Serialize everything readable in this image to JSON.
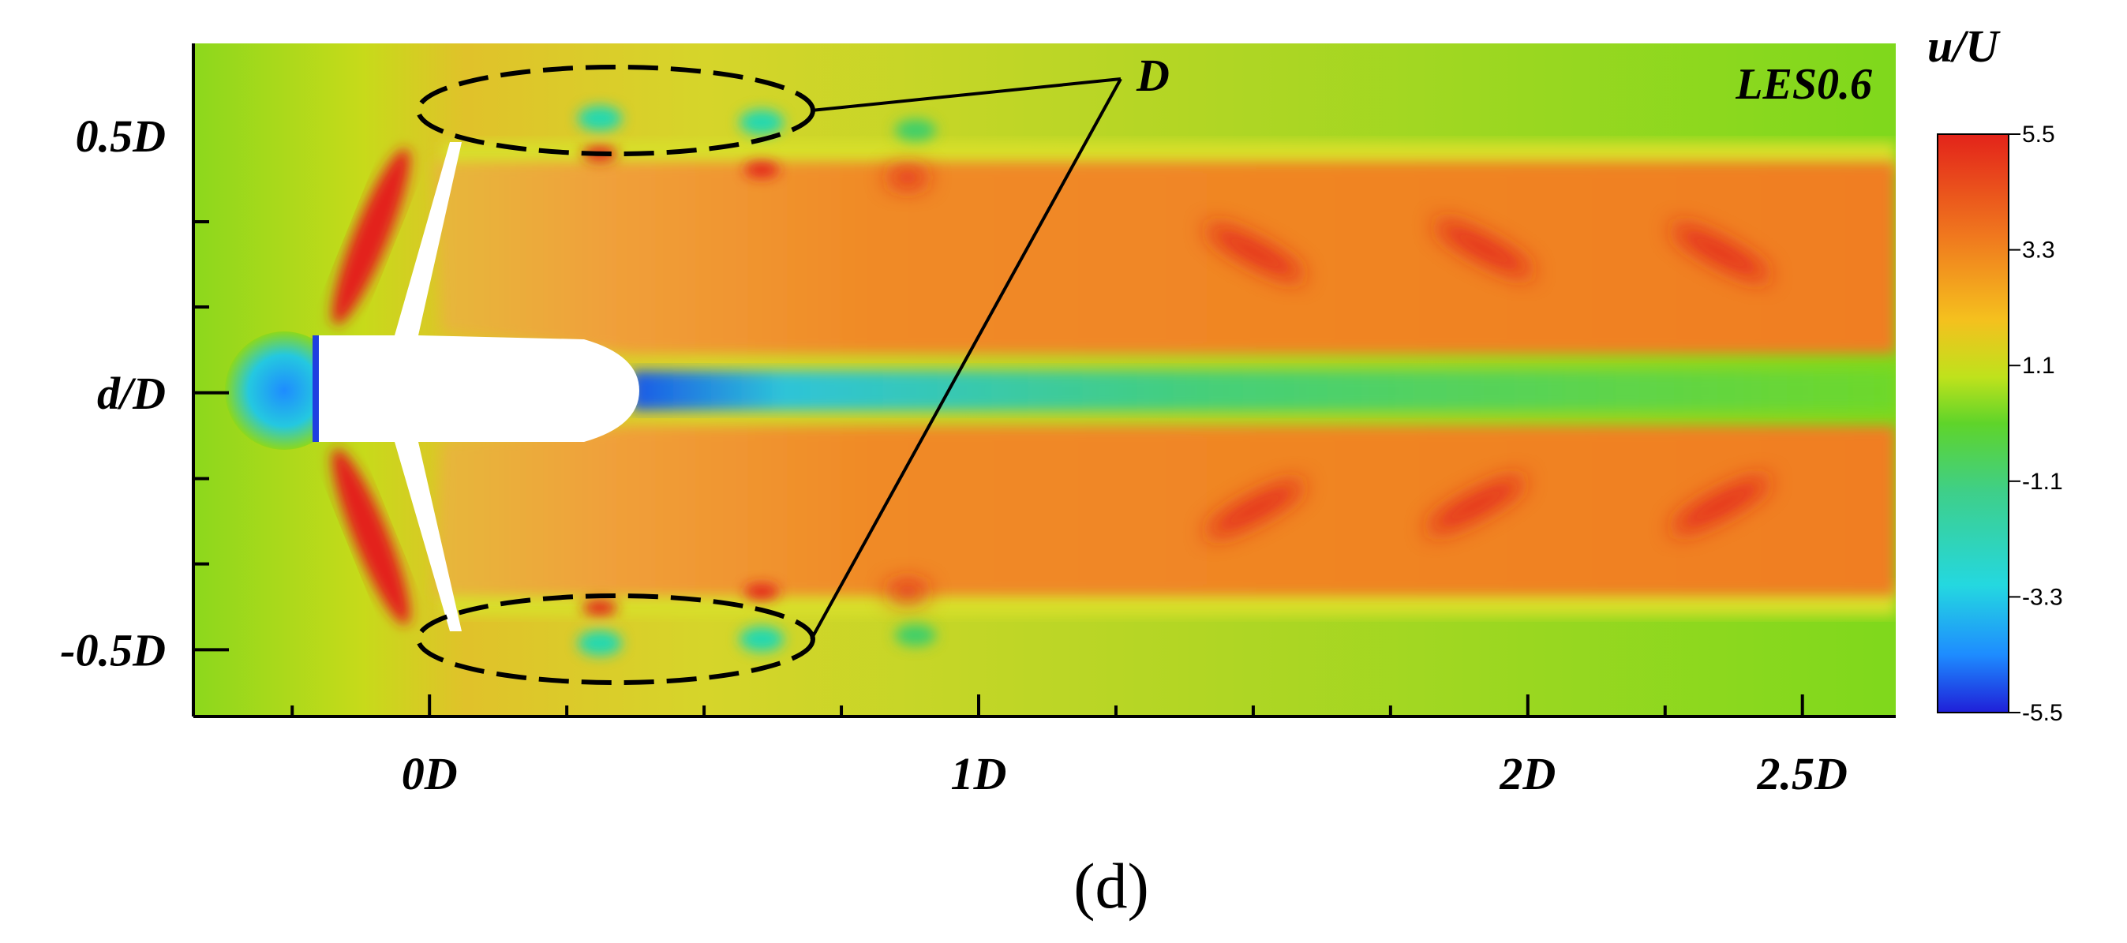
{
  "chart_data": {
    "type": "heatmap",
    "title": "",
    "quantity_label": "u/U",
    "case_label": "LES0.6",
    "annotation_label": "D",
    "caption": "(d)",
    "xlabel": "",
    "ylabel": "",
    "x_ticks": [
      "0D",
      "1D",
      "2D",
      "2.5D"
    ],
    "x_tick_values": [
      0,
      1,
      2,
      2.5
    ],
    "y_ticks": [
      "0.5D",
      "d/D",
      "-0.5D"
    ],
    "y_tick_values": [
      0.5,
      0,
      -0.5
    ],
    "xlim": [
      -0.43,
      2.67
    ],
    "ylim": [
      -0.63,
      0.68
    ],
    "colorbar": {
      "ticks": [
        "5.5",
        "3.3",
        "1.1",
        "-1.1",
        "-3.3",
        "-5.5"
      ],
      "values": [
        5.5,
        3.3,
        1.1,
        -1.1,
        -3.3,
        -5.5
      ],
      "range": [
        -5.5,
        5.5
      ],
      "colors": [
        "#1f1fd8",
        "#1e9cff",
        "#24d8e0",
        "#3ecf6a",
        "#6edc1e",
        "#d7e61c",
        "#f5a623",
        "#f07a1e",
        "#e3231a"
      ]
    },
    "annotations": [
      {
        "label": "D",
        "region": "upper blade-tip vortex ellipse",
        "x_center": 0.33,
        "y_center": 0.53
      },
      {
        "label": "D",
        "region": "lower blade-tip vortex ellipse",
        "x_center": 0.33,
        "y_center": -0.5
      }
    ],
    "colors": {
      "background_field": "#7fd81c",
      "wake": "#f0851e",
      "hotspot": "#e3231a",
      "hub_jet": "#34c9b0",
      "body": "#ffffff"
    }
  }
}
